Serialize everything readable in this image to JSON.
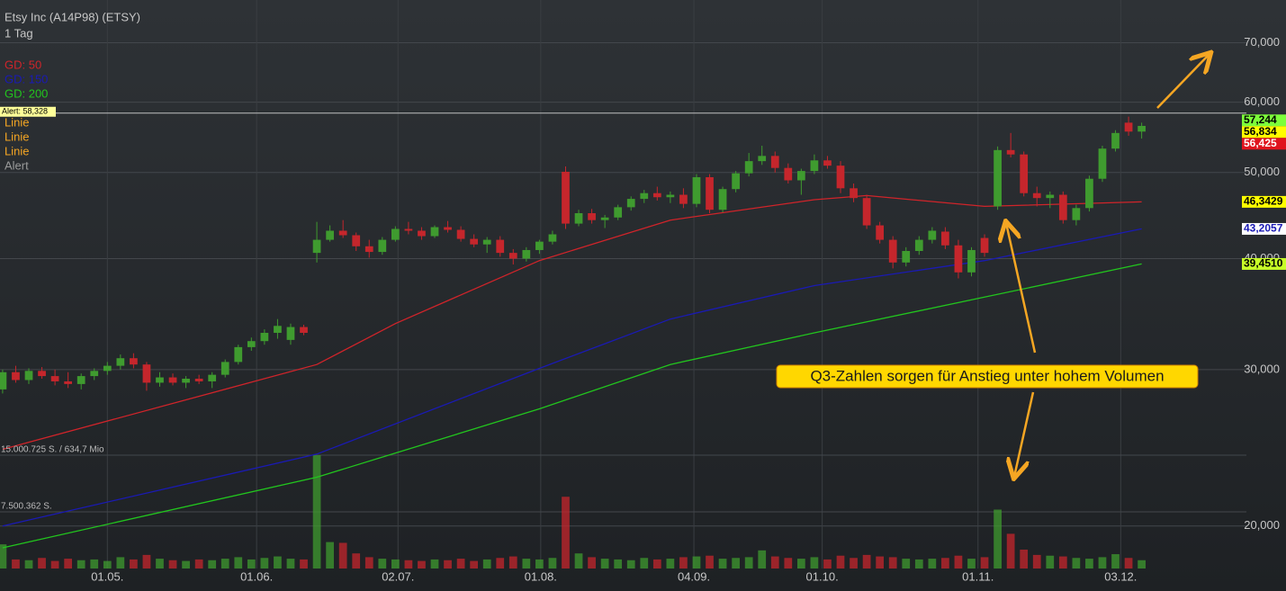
{
  "chart_data": {
    "type": "candlestick",
    "title": "Etsy Inc (A14P98) (ETSY)",
    "subtitle": "1 Tag",
    "log_y": true,
    "grid": true,
    "ylim": [
      16.9,
      78.2
    ],
    "yticks": [
      {
        "value": 20,
        "label": "20,000"
      },
      {
        "value": 30,
        "label": "30,000"
      },
      {
        "value": 40,
        "label": "40,000"
      },
      {
        "value": 50,
        "label": "50,000"
      },
      {
        "value": 60,
        "label": "60,000"
      },
      {
        "value": 70,
        "label": "70,000"
      }
    ],
    "xlim": [
      -0.2,
      95
    ],
    "xticks": [
      {
        "value": 8.0,
        "label": "01.05."
      },
      {
        "value": 19.4,
        "label": "01.06."
      },
      {
        "value": 30.2,
        "label": "02.07."
      },
      {
        "value": 41.1,
        "label": "01.08."
      },
      {
        "value": 52.8,
        "label": "04.09."
      },
      {
        "value": 62.6,
        "label": "01.10."
      },
      {
        "value": 74.5,
        "label": "01.11."
      },
      {
        "value": 85.4,
        "label": "03.12."
      }
    ],
    "up_color": "#3f9b2f",
    "down_color": "#c5262c",
    "candles": [
      [
        28.5,
        30.0,
        28.2,
        29.8
      ],
      [
        29.8,
        30.3,
        29.0,
        29.2
      ],
      [
        29.2,
        30.1,
        28.9,
        29.9
      ],
      [
        29.9,
        30.2,
        29.3,
        29.5
      ],
      [
        29.5,
        30.0,
        28.8,
        29.1
      ],
      [
        29.1,
        29.8,
        28.6,
        28.9
      ],
      [
        28.9,
        29.7,
        28.5,
        29.5
      ],
      [
        29.5,
        30.1,
        29.2,
        29.9
      ],
      [
        29.9,
        30.6,
        29.6,
        30.3
      ],
      [
        30.3,
        31.2,
        30.0,
        30.9
      ],
      [
        30.9,
        31.3,
        30.1,
        30.4
      ],
      [
        30.4,
        30.6,
        28.4,
        29.0
      ],
      [
        29.0,
        29.8,
        28.7,
        29.4
      ],
      [
        29.4,
        29.7,
        28.8,
        29.0
      ],
      [
        29.0,
        29.5,
        28.6,
        29.3
      ],
      [
        29.3,
        29.6,
        28.9,
        29.1
      ],
      [
        29.1,
        29.8,
        28.6,
        29.6
      ],
      [
        29.6,
        30.8,
        29.4,
        30.6
      ],
      [
        30.6,
        32.0,
        30.4,
        31.8
      ],
      [
        31.8,
        32.6,
        31.5,
        32.3
      ],
      [
        32.3,
        33.3,
        32.0,
        33.0
      ],
      [
        33.0,
        34.2,
        32.5,
        33.6
      ],
      [
        32.4,
        33.8,
        32.0,
        33.5
      ],
      [
        33.5,
        33.7,
        32.8,
        33.0
      ],
      [
        40.6,
        44.0,
        39.6,
        42.0
      ],
      [
        42.0,
        43.6,
        41.8,
        43.0
      ],
      [
        43.0,
        44.2,
        42.2,
        42.5
      ],
      [
        42.5,
        42.8,
        40.8,
        41.3
      ],
      [
        41.3,
        42.0,
        40.1,
        40.7
      ],
      [
        40.7,
        42.3,
        40.4,
        42.0
      ],
      [
        42.0,
        43.5,
        41.8,
        43.2
      ],
      [
        43.2,
        44.0,
        42.6,
        43.0
      ],
      [
        43.0,
        43.4,
        42.0,
        42.4
      ],
      [
        42.4,
        43.6,
        42.2,
        43.4
      ],
      [
        43.4,
        44.1,
        42.8,
        43.1
      ],
      [
        43.1,
        43.5,
        41.8,
        42.1
      ],
      [
        42.1,
        42.6,
        41.2,
        41.5
      ],
      [
        41.5,
        42.3,
        40.6,
        42.0
      ],
      [
        42.0,
        42.4,
        40.2,
        40.6
      ],
      [
        40.6,
        41.0,
        39.4,
        40.0
      ],
      [
        40.0,
        41.2,
        39.7,
        40.9
      ],
      [
        40.9,
        42.0,
        40.5,
        41.8
      ],
      [
        41.8,
        43.0,
        41.5,
        42.6
      ],
      [
        50.1,
        50.8,
        43.2,
        43.8
      ],
      [
        43.8,
        45.4,
        43.5,
        45.0
      ],
      [
        45.0,
        45.5,
        43.8,
        44.2
      ],
      [
        44.2,
        44.8,
        43.3,
        44.5
      ],
      [
        44.5,
        46.0,
        44.2,
        45.7
      ],
      [
        45.7,
        47.0,
        45.3,
        46.7
      ],
      [
        46.7,
        47.8,
        46.2,
        47.4
      ],
      [
        47.4,
        48.2,
        46.5,
        46.9
      ],
      [
        46.9,
        47.6,
        46.2,
        47.2
      ],
      [
        47.2,
        48.0,
        45.6,
        46.1
      ],
      [
        46.1,
        49.8,
        45.7,
        49.4
      ],
      [
        49.4,
        49.8,
        45.0,
        45.4
      ],
      [
        45.4,
        48.2,
        45.1,
        47.9
      ],
      [
        47.9,
        50.2,
        47.5,
        49.9
      ],
      [
        49.9,
        52.6,
        49.5,
        51.5
      ],
      [
        51.5,
        53.6,
        51.0,
        52.2
      ],
      [
        52.2,
        52.8,
        50.0,
        50.6
      ],
      [
        50.6,
        51.2,
        48.6,
        49.0
      ],
      [
        49.0,
        50.5,
        47.2,
        50.2
      ],
      [
        50.2,
        52.4,
        49.8,
        51.6
      ],
      [
        51.6,
        52.2,
        50.5,
        50.9
      ],
      [
        50.9,
        51.5,
        47.4,
        48.0
      ],
      [
        48.0,
        48.6,
        46.3,
        46.8
      ],
      [
        46.8,
        47.2,
        43.2,
        43.6
      ],
      [
        43.6,
        44.0,
        41.6,
        42.0
      ],
      [
        42.0,
        42.4,
        39.0,
        39.6
      ],
      [
        39.6,
        41.2,
        39.2,
        40.8
      ],
      [
        40.8,
        42.4,
        40.4,
        42.0
      ],
      [
        42.0,
        43.4,
        41.6,
        43.0
      ],
      [
        42.9,
        43.4,
        41.0,
        41.4
      ],
      [
        41.4,
        42.0,
        38.0,
        38.6
      ],
      [
        38.6,
        41.2,
        38.2,
        40.9
      ],
      [
        42.2,
        42.6,
        40.2,
        40.6
      ],
      [
        45.8,
        53.5,
        45.4,
        53.0
      ],
      [
        53.0,
        55.4,
        52.0,
        52.4
      ],
      [
        52.4,
        52.8,
        47.0,
        47.4
      ],
      [
        47.4,
        48.2,
        45.8,
        46.8
      ],
      [
        46.8,
        47.6,
        45.6,
        47.2
      ],
      [
        47.2,
        47.6,
        43.8,
        44.2
      ],
      [
        44.2,
        46.0,
        43.6,
        45.6
      ],
      [
        45.6,
        49.6,
        45.2,
        49.2
      ],
      [
        49.2,
        53.6,
        48.8,
        53.2
      ],
      [
        53.2,
        55.8,
        52.8,
        55.4
      ],
      [
        56.9,
        57.8,
        55.0,
        55.6
      ],
      [
        55.6,
        56.9,
        54.6,
        56.425
      ]
    ],
    "volume": [
      3200000,
      1200000,
      1100000,
      1400000,
      1000000,
      1300000,
      1100000,
      1200000,
      1000000,
      1500000,
      1200000,
      1800000,
      1300000,
      1100000,
      1000000,
      1200000,
      1100000,
      1300000,
      1500000,
      1200000,
      1400000,
      1600000,
      1300000,
      1200000,
      15000725,
      3500000,
      3400000,
      2000000,
      1500000,
      1300000,
      1200000,
      1100000,
      1000000,
      1200000,
      1100000,
      1300000,
      1000000,
      1200000,
      1400000,
      1600000,
      1300000,
      1200000,
      1400000,
      9500000,
      2000000,
      1500000,
      1300000,
      1200000,
      1100000,
      1400000,
      1200000,
      1300000,
      1500000,
      1600000,
      1700000,
      1300000,
      1400000,
      1500000,
      2400000,
      1600000,
      1400000,
      1300000,
      1500000,
      1200000,
      1700000,
      1400000,
      1800000,
      1600000,
      1500000,
      1300000,
      1200000,
      1300000,
      1400000,
      1700000,
      1300000,
      1500000,
      7800000,
      4600000,
      2500000,
      1800000,
      1700000,
      1600000,
      1400000,
      1300000,
      1500000,
      1900000,
      1400000,
      1100000
    ],
    "volume_ylim": [
      0,
      18700000
    ],
    "volume_ticks": [
      {
        "value": 15000725,
        "label": "15.000.725 S. / 634,7 Mio"
      },
      {
        "value": 7500362,
        "label": "7.500.362 S."
      }
    ],
    "series": [
      {
        "name": "GD: 50",
        "color": "#d0242a",
        "x": [
          0,
          24,
          30,
          41,
          51,
          62,
          66,
          75,
          87
        ],
        "values": [
          24.4,
          30.4,
          33.8,
          39.8,
          44.2,
          46.6,
          47.1,
          45.8,
          46.3429
        ]
      },
      {
        "name": "GD: 150",
        "color": "#1a1ab4",
        "x": [
          0,
          24,
          41,
          51,
          62,
          75,
          87
        ],
        "values": [
          20.0,
          24.1,
          30.1,
          34.2,
          37.3,
          39.8,
          43.2057
        ]
      },
      {
        "name": "GD: 200",
        "color": "#22c51e",
        "x": [
          0,
          24,
          41,
          51,
          62,
          75,
          87
        ],
        "values": [
          18.9,
          22.7,
          27.1,
          30.4,
          33.0,
          36.2,
          39.451
        ]
      }
    ],
    "legend_extra": [
      "Linie",
      "Linie",
      "Linie",
      "Alert"
    ],
    "alert": {
      "value": 58.328,
      "label": "Alert: 58,328"
    },
    "price_labels": [
      {
        "value": 57.244,
        "label": "57,244",
        "bg": "#7dff3a",
        "fg": "#000000"
      },
      {
        "value": 56.834,
        "label": "56,834",
        "bg": "#ffff00",
        "fg": "#000000"
      },
      {
        "value": 56.425,
        "label": "56,425",
        "bg": "#e0141e",
        "fg": "#ffffff"
      },
      {
        "value": 46.3429,
        "label": "46,3429",
        "bg": "#ffff00",
        "fg": "#000000"
      },
      {
        "value": 43.2057,
        "label": "43,2057",
        "bg": "#ffffff",
        "fg": "#1a1ab4"
      },
      {
        "value": 39.451,
        "label": "39,4510",
        "bg": "#c8ff28",
        "fg": "#000000"
      }
    ],
    "annotation": "Q3-Zahlen sorgen für Anstieg unter hohem Volumen"
  }
}
